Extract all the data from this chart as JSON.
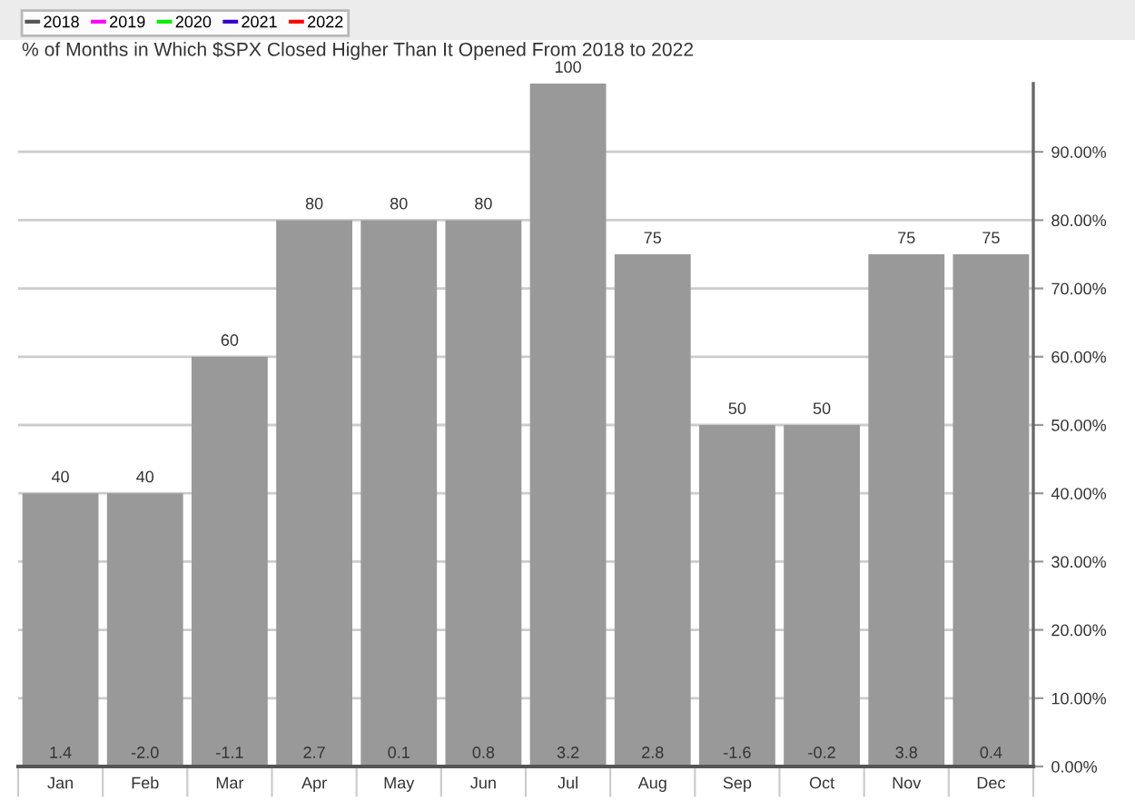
{
  "chart_data": {
    "type": "bar",
    "title": "% of Months in Which $SPX Closed Higher Than It Opened From 2018 to 2022",
    "categories": [
      "Jan",
      "Feb",
      "Mar",
      "Apr",
      "May",
      "Jun",
      "Jul",
      "Aug",
      "Sep",
      "Oct",
      "Nov",
      "Dec"
    ],
    "series": [
      {
        "color": "#999999",
        "values": [
          40,
          40,
          60,
          80,
          80,
          80,
          100,
          75,
          50,
          50,
          75,
          75
        ]
      },
      {
        "type": "line",
        "name": "2018",
        "color": "#555555",
        "values": [
          null,
          null,
          null,
          null,
          null,
          null,
          null,
          null,
          null,
          null,
          null,
          null
        ]
      },
      {
        "type": "line",
        "name": "2019",
        "color": "#ff00ff",
        "values": [
          null,
          null,
          null,
          null,
          null,
          null,
          null,
          null,
          null,
          null,
          null,
          null
        ]
      },
      {
        "type": "line",
        "name": "2020",
        "color": "#00ee00",
        "values": [
          null,
          null,
          null,
          null,
          null,
          null,
          null,
          null,
          null,
          null,
          null,
          null
        ]
      },
      {
        "type": "line",
        "name": "2021",
        "color": "#3300cc",
        "values": [
          null,
          null,
          null,
          null,
          null,
          null,
          null,
          null,
          null,
          null,
          null,
          null
        ]
      },
      {
        "type": "line",
        "name": "2022",
        "color": "#ff0000",
        "values": [
          null,
          null,
          null,
          null,
          null,
          null,
          null,
          null,
          null,
          null,
          null,
          null
        ]
      }
    ],
    "data_labels": true,
    "annotations": [
      {
        "text": "1.4",
        "x": "Jan",
        "y": 0
      },
      {
        "text": "-2.0",
        "x": "Feb",
        "y": 0
      },
      {
        "text": "-1.1",
        "x": "Mar",
        "y": 0
      },
      {
        "text": "2.7",
        "x": "Apr",
        "y": 0
      },
      {
        "text": "0.1",
        "x": "May",
        "y": 0
      },
      {
        "text": "0.8",
        "x": "Jun",
        "y": 0
      },
      {
        "text": "3.2",
        "x": "Jul",
        "y": 0
      },
      {
        "text": "2.8",
        "x": "Aug",
        "y": 0
      },
      {
        "text": "-1.6",
        "x": "Sep",
        "y": 0
      },
      {
        "text": "-0.2",
        "x": "Oct",
        "y": 0
      },
      {
        "text": "3.8",
        "x": "Nov",
        "y": 0
      },
      {
        "text": "0.4",
        "x": "Dec",
        "y": 0
      }
    ],
    "ylim": [
      0,
      100
    ],
    "yticks": [
      {
        "value": 0,
        "label": "0.00%"
      },
      {
        "value": 10,
        "label": "10.00%"
      },
      {
        "value": 20,
        "label": "20.00%"
      },
      {
        "value": 30,
        "label": "30.00%"
      },
      {
        "value": 40,
        "label": "40.00%"
      },
      {
        "value": 50,
        "label": "50.00%"
      },
      {
        "value": 60,
        "label": "60.00%"
      },
      {
        "value": 70,
        "label": "70.00%"
      },
      {
        "value": 80,
        "label": "80.00%"
      },
      {
        "value": 90,
        "label": "90.00%"
      }
    ],
    "grid": "y",
    "legend": "top left"
  }
}
